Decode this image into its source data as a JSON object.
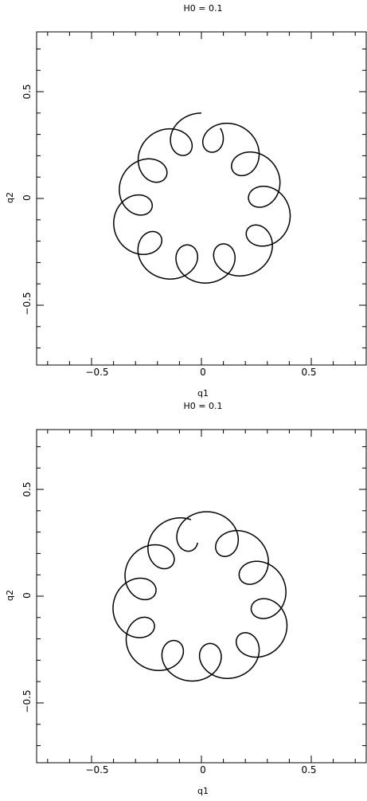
{
  "chart_data": [
    {
      "type": "line",
      "title": "H0 = 0.1",
      "xlabel": "q1",
      "ylabel": "q2",
      "xlim": [
        -0.75,
        0.75
      ],
      "ylim": [
        -0.78,
        0.78
      ],
      "xticks": [
        -0.5,
        0,
        0.5
      ],
      "yticks": [
        -0.5,
        0,
        0.5
      ],
      "xtick_labels": [
        "−0.5",
        "0",
        "0.5"
      ],
      "ytick_labels": [
        "−0.5",
        "0",
        "0.5"
      ],
      "grid": false,
      "series": [
        {
          "curve": {
            "a": 0.31,
            "b": 0.088,
            "p": 0.162,
            "lobes": 3,
            "loops": 11,
            "phase": 0.0,
            "alpha": 0.07,
            "steps": 6000
          }
        }
      ]
    },
    {
      "type": "line",
      "title": "H0 = 0.1",
      "xlabel": "q1",
      "ylabel": "q2",
      "xlim": [
        -0.75,
        0.75
      ],
      "ylim": [
        -0.78,
        0.78
      ],
      "xticks": [
        -0.5,
        0,
        0.5
      ],
      "yticks": [
        -0.5,
        0,
        0.5
      ],
      "xtick_labels": [
        "−0.5",
        "0",
        "0.5"
      ],
      "ytick_labels": [
        "−0.5",
        "0",
        "0.5"
      ],
      "grid": false,
      "series": [
        {
          "curve": {
            "a": 0.31,
            "b": 0.088,
            "p": 0.162,
            "lobes": 3,
            "loops": 11,
            "phase": 0.31,
            "alpha": 0.062,
            "steps": 6000
          }
        }
      ]
    }
  ]
}
